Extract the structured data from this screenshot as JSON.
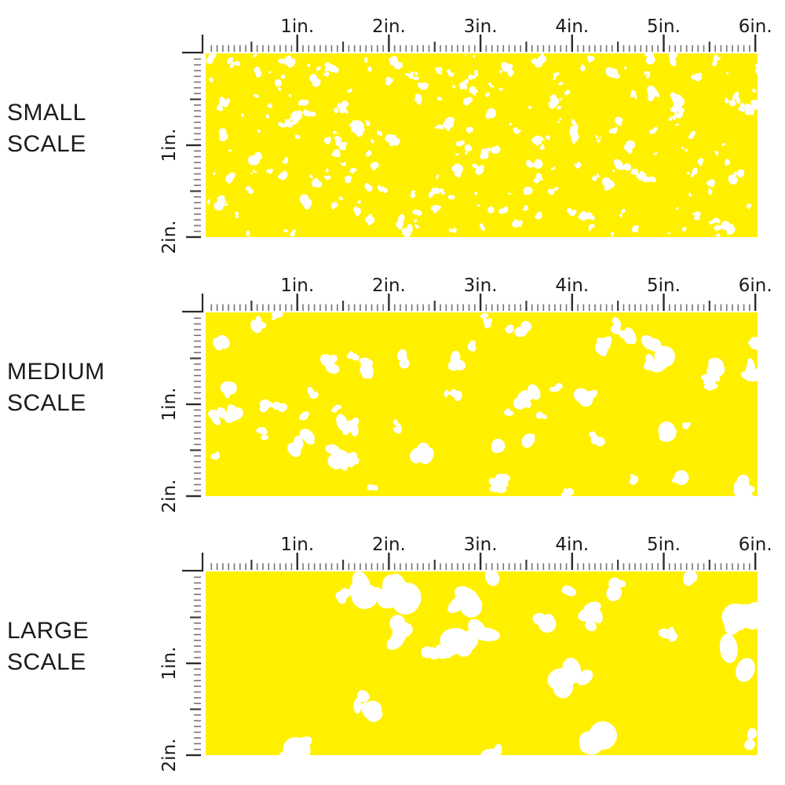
{
  "colors": {
    "fabric_yellow": "#FFF000",
    "pattern_white": "#FFFFFF",
    "ruler_major": "#2b2b2b",
    "ruler_half": "#3c3c3c",
    "ruler_minor": "#757575",
    "label_text": "#1b1b1b"
  },
  "ruler": {
    "horizontal_labels": [
      "1in.",
      "2in.",
      "3in.",
      "4in.",
      "5in.",
      "6in."
    ],
    "vertical_labels": [
      "1in.",
      "2in."
    ],
    "horizontal_inches": 6,
    "vertical_inches": 2,
    "ticks_per_inch": 16
  },
  "rows": [
    {
      "id": "small",
      "label": "SMALL SCALE",
      "label_lines": [
        "SMALL",
        "SCALE"
      ],
      "pattern": {
        "seed": 11,
        "count": 265,
        "min_r": 1.6,
        "max_r": 6.2
      }
    },
    {
      "id": "medium",
      "label": "MEDIUM SCALE",
      "label_lines": [
        "MEDIUM",
        "SCALE"
      ],
      "pattern": {
        "seed": 23,
        "count": 60,
        "min_r": 4.5,
        "max_r": 12.5
      }
    },
    {
      "id": "large",
      "label": "LARGE SCALE",
      "label_lines": [
        "LARGE",
        "SCALE"
      ],
      "pattern": {
        "seed": 37,
        "count": 25,
        "min_r": 9,
        "max_r": 22
      }
    }
  ]
}
